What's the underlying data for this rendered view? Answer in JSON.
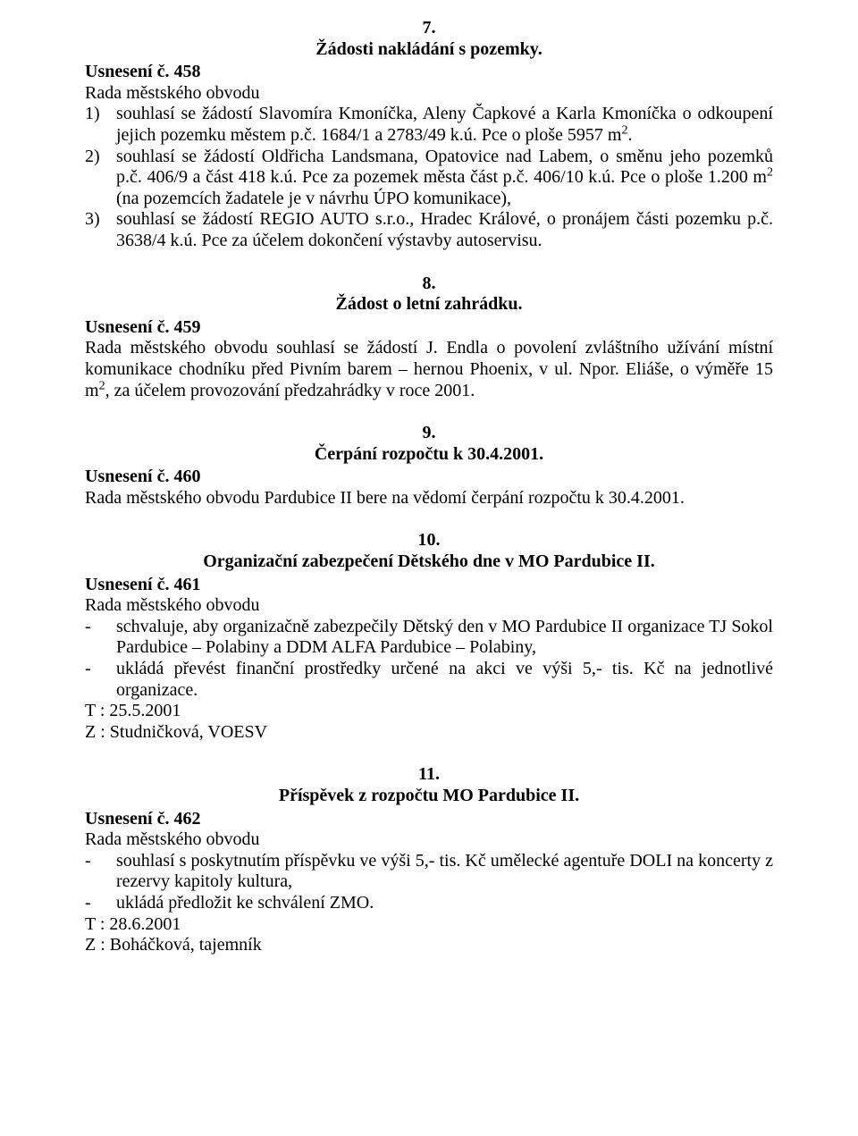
{
  "s7": {
    "num": "7.",
    "title": "Žádosti nakládání s pozemky.",
    "usneseni": "Usnesení č. 458",
    "intro": "Rada městského obvodu",
    "items": [
      {
        "marker": "1)",
        "text": "souhlasí se žádostí Slavomíra Kmoníčka, Aleny Čapkové a Karla Kmoníčka o odkoupení jejich pozemku městem p.č. 1684/1 a 2783/49 k.ú. Pce o ploše 5957 m",
        "sup": "2",
        "tail": "."
      },
      {
        "marker": "2)",
        "text": "souhlasí se žádostí Oldřicha Landsmana, Opatovice nad Labem, o směnu jeho pozemků p.č. 406/9 a část 418 k.ú. Pce za pozemek města část p.č. 406/10 k.ú. Pce o ploše 1.200 m",
        "sup": "2",
        "tail": " (na pozemcích žadatele je v návrhu ÚPO komunikace),"
      },
      {
        "marker": "3)",
        "text": "souhlasí se žádostí REGIO AUTO s.r.o., Hradec Králové, o pronájem části pozemku p.č. 3638/4 k.ú. Pce za účelem dokončení výstavby autoservisu.",
        "sup": "",
        "tail": ""
      }
    ]
  },
  "s8": {
    "num": "8.",
    "title": "Žádost o letní zahrádku.",
    "usneseni": "Usnesení č. 459",
    "body_a": "Rada městského obvodu souhlasí se žádostí J. Endla o povolení zvláštního užívání místní komunikace chodníku před Pivním barem – hernou Phoenix, v ul. Npor. Eliáše, o výměře 15 m",
    "sup": "2",
    "body_b": ",  za účelem provozování předzahrádky v roce 2001."
  },
  "s9": {
    "num": "9.",
    "title": "Čerpání rozpočtu k 30.4.2001.",
    "usneseni": "Usnesení č. 460",
    "body": "Rada městského obvodu Pardubice II bere na vědomí čerpání rozpočtu k 30.4.2001."
  },
  "s10": {
    "num": "10.",
    "title": "Organizační zabezpečení Dětského dne v MO Pardubice II.",
    "usneseni": "Usnesení č. 461",
    "intro": "Rada městského obvodu",
    "items": [
      {
        "marker": "-",
        "text": "schvaluje, aby organizačně zabezpečily Dětský den v MO Pardubice II organizace TJ Sokol Pardubice – Polabiny a DDM ALFA Pardubice – Polabiny,"
      },
      {
        "marker": "-",
        "text": "ukládá převést finanční prostředky určené na akci ve výši 5,- tis. Kč na jednotlivé organizace."
      }
    ],
    "t": "T : 25.5.2001",
    "z": "Z : Studničková, VOESV"
  },
  "s11": {
    "num": "11.",
    "title": "Příspěvek z rozpočtu MO Pardubice II.",
    "usneseni": "Usnesení č. 462",
    "intro": "Rada městského obvodu",
    "items": [
      {
        "marker": "-",
        "text": "souhlasí s poskytnutím příspěvku ve výši 5,- tis. Kč umělecké agentuře DOLI na koncerty z rezervy kapitoly kultura,"
      },
      {
        "marker": "-",
        "text": "ukládá předložit ke schválení ZMO."
      }
    ],
    "t": "T : 28.6.2001",
    "z": "Z : Boháčková, tajemník"
  }
}
